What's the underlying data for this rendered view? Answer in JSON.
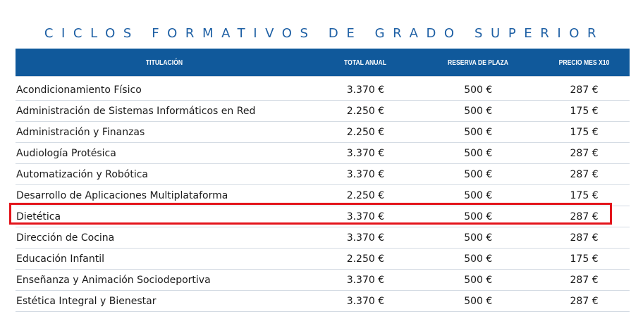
{
  "heading": "CICLOS FORMATIVOS DE GRADO SUPERIOR",
  "table": {
    "headers": [
      "TITULACIÓN",
      "TOTAL ANUAL",
      "RESERVA DE PLAZA",
      "PRECIO MES X10"
    ],
    "rows": [
      {
        "titulacion": "Acondicionamiento Físico",
        "total": "3.370 €",
        "reserva": "500 €",
        "precio": "287 €"
      },
      {
        "titulacion": "Administración de Sistemas Informáticos en Red",
        "total": "2.250 €",
        "reserva": "500 €",
        "precio": "175 €"
      },
      {
        "titulacion": "Administración y Finanzas",
        "total": "2.250 €",
        "reserva": "500 €",
        "precio": "175 €"
      },
      {
        "titulacion": "Audiología Protésica",
        "total": "3.370 €",
        "reserva": "500 €",
        "precio": "287 €"
      },
      {
        "titulacion": "Automatización y Robótica",
        "total": "3.370 €",
        "reserva": "500 €",
        "precio": "287 €"
      },
      {
        "titulacion": "Desarrollo de Aplicaciones Multiplataforma",
        "total": "2.250 €",
        "reserva": "500 €",
        "precio": "175 €"
      },
      {
        "titulacion": "Dietética",
        "total": "3.370 €",
        "reserva": "500 €",
        "precio": "287 €"
      },
      {
        "titulacion": "Dirección de Cocina",
        "total": "3.370 €",
        "reserva": "500 €",
        "precio": "287 €"
      },
      {
        "titulacion": "Educación Infantil",
        "total": "2.250 €",
        "reserva": "500 €",
        "precio": "175 €"
      },
      {
        "titulacion": "Enseñanza y Animación Sociodeportiva",
        "total": "3.370 €",
        "reserva": "500 €",
        "precio": "287 €"
      },
      {
        "titulacion": "Estética Integral y Bienestar",
        "total": "3.370 €",
        "reserva": "500 €",
        "precio": "287 €"
      }
    ],
    "highlighted_row": "Dietética"
  },
  "colors": {
    "heading": "#1d5fa4",
    "header_bg": "#10599b",
    "highlight_border": "#e3141b"
  }
}
